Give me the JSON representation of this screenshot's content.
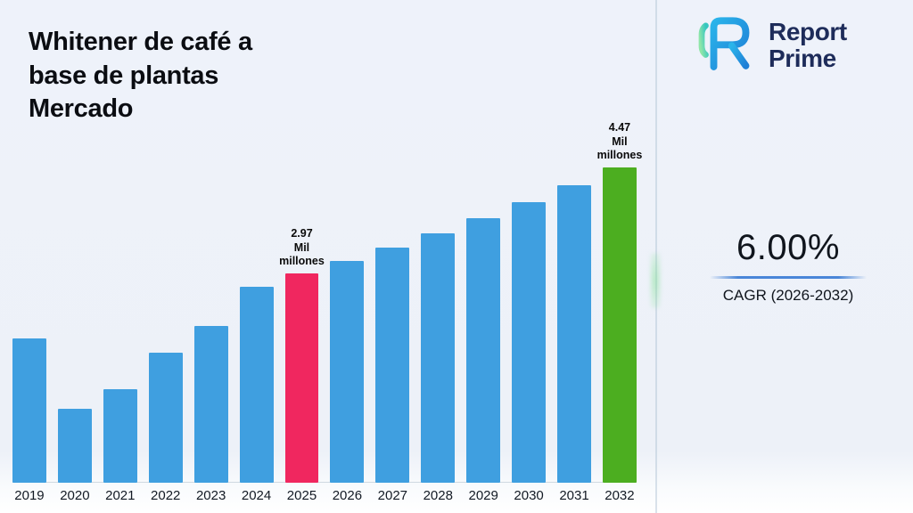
{
  "header": {
    "title": "Whitener de café a base de plantas Mercado"
  },
  "brand": {
    "line1": "Report",
    "line2": "Prime"
  },
  "cagr": {
    "value": "6.00%",
    "label": "CAGR (2026-2032)"
  },
  "chart_data": {
    "type": "bar",
    "title": "Whitener de café a base de plantas Mercado",
    "xlabel": "",
    "ylabel": "",
    "grid": false,
    "legend": null,
    "categories": [
      "2019",
      "2020",
      "2021",
      "2022",
      "2023",
      "2024",
      "2025",
      "2026",
      "2027",
      "2028",
      "2029",
      "2030",
      "2031",
      "2032"
    ],
    "values": [
      2.05,
      1.05,
      1.32,
      1.84,
      2.22,
      2.78,
      2.97,
      3.15,
      3.34,
      3.54,
      3.75,
      3.98,
      4.22,
      4.47
    ],
    "ylim": [
      0,
      4.8
    ],
    "bar_color_default": "#3f9fe0",
    "highlights": {
      "2025": {
        "color": "#f0275f",
        "label_lines": [
          "2.97",
          "Mil",
          "millones"
        ]
      },
      "2032": {
        "color": "#4cae20",
        "label_lines": [
          "4.47",
          "Mil",
          "millones"
        ]
      }
    }
  }
}
